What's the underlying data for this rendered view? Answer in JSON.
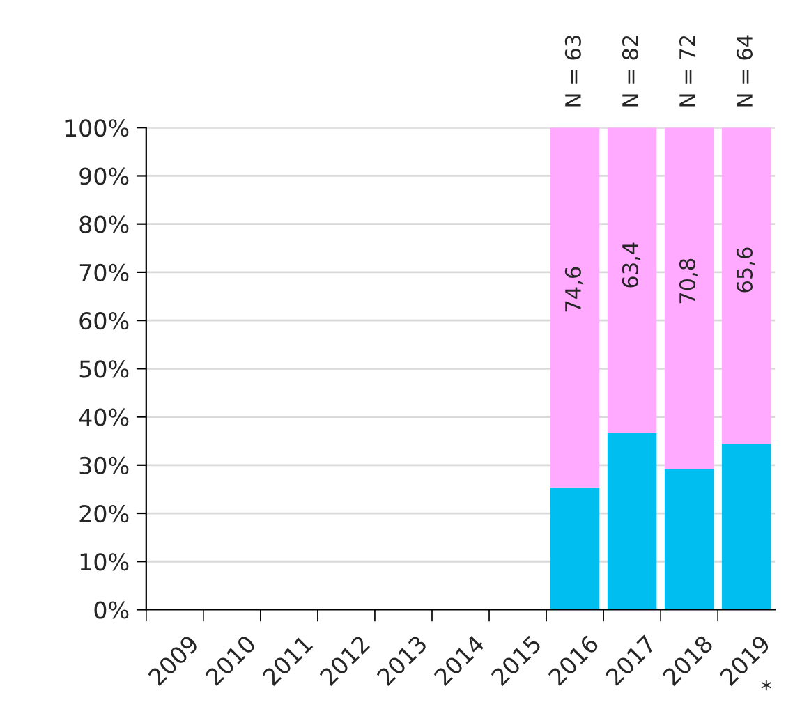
{
  "chart_data": {
    "type": "bar",
    "stacked": true,
    "categories": [
      "2009",
      "2010",
      "2011",
      "2012",
      "2013",
      "2014",
      "2015",
      "2016",
      "2017",
      "2018",
      "2019"
    ],
    "series": [
      {
        "color": "#00bff0",
        "values": [
          null,
          null,
          null,
          null,
          null,
          null,
          null,
          25.4,
          36.6,
          29.2,
          34.4
        ]
      },
      {
        "color": "#ffaaff",
        "values": [
          null,
          null,
          null,
          null,
          null,
          null,
          null,
          74.6,
          63.4,
          70.8,
          65.6
        ],
        "value_labels": [
          null,
          null,
          null,
          null,
          null,
          null,
          null,
          "74,6",
          "63,4",
          "70,8",
          "65,6"
        ]
      }
    ],
    "ylim": [
      0,
      100
    ],
    "yticks": [
      {
        "value": 0,
        "label": "0%"
      },
      {
        "value": 10,
        "label": "10%"
      },
      {
        "value": 20,
        "label": "20%"
      },
      {
        "value": 30,
        "label": "30%"
      },
      {
        "value": 40,
        "label": "40%"
      },
      {
        "value": 50,
        "label": "50%"
      },
      {
        "value": 60,
        "label": "60%"
      },
      {
        "value": 70,
        "label": "70%"
      },
      {
        "value": 80,
        "label": "80%"
      },
      {
        "value": 90,
        "label": "90%"
      },
      {
        "value": 100,
        "label": "100%"
      }
    ],
    "grid": "y",
    "annotations": [
      {
        "text": "N = 63",
        "x": "2016",
        "y": 100
      },
      {
        "text": "N = 82",
        "x": "2017",
        "y": 100
      },
      {
        "text": "N = 72",
        "x": "2018",
        "y": 100
      },
      {
        "text": "N = 64",
        "x": "2019",
        "y": 100
      },
      "*"
    ]
  }
}
